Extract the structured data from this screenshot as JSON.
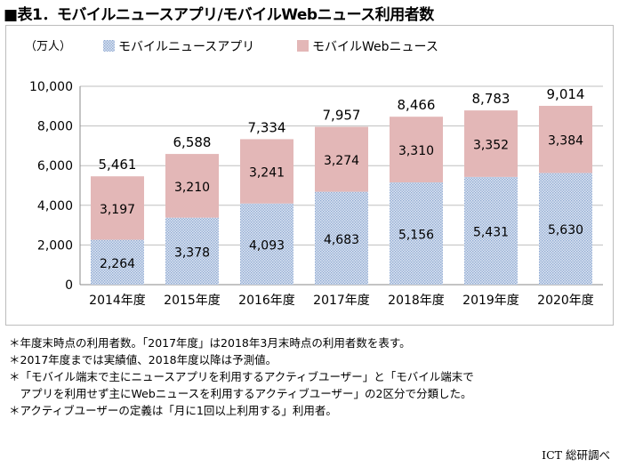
{
  "title": "■表1．モバイルニュースアプリ/モバイルWebニュース利用者数",
  "colors": {
    "app": "#c9d7ea",
    "app_pattern": "#9db3d6",
    "web": "#e3b7b7",
    "grid": "#bfbfbf"
  },
  "chart_data": {
    "type": "bar",
    "stacked": true,
    "unit_label": "（万人）",
    "categories": [
      "2014年度",
      "2015年度",
      "2016年度",
      "2017年度",
      "2018年度",
      "2019年度",
      "2020年度"
    ],
    "series": [
      {
        "name": "モバイルニュースアプリ",
        "values": [
          2264,
          3378,
          4093,
          4683,
          5156,
          5431,
          5630
        ]
      },
      {
        "name": "モバイルWebニュース",
        "values": [
          3197,
          3210,
          3241,
          3274,
          3310,
          3352,
          3384
        ]
      }
    ],
    "totals": [
      5461,
      6588,
      7334,
      7957,
      8466,
      8783,
      9014
    ],
    "ylim": [
      0,
      10000
    ],
    "yticks": [
      0,
      2000,
      4000,
      6000,
      8000,
      10000
    ],
    "ytick_labels": [
      "0",
      "2,000",
      "4,000",
      "6,000",
      "8,000",
      "10,000"
    ],
    "legend_position": "top",
    "grid": true
  },
  "notes": [
    "＊年度末時点の利用者数。「2017年度」は2018年3月末時点の利用者数を表す。",
    "＊2017年度までは実績値、2018年度以降は予測値。",
    "＊「モバイル端末で主にニュースアプリを利用するアクティブユーザー」と「モバイル端末で",
    "　アプリを利用せず主にWebニュースを利用するアクティブユーザー」の2区分で分類した。",
    "＊アクティブユーザーの定義は「月に1回以上利用する」利用者。"
  ],
  "source": "ICT 総研調べ"
}
